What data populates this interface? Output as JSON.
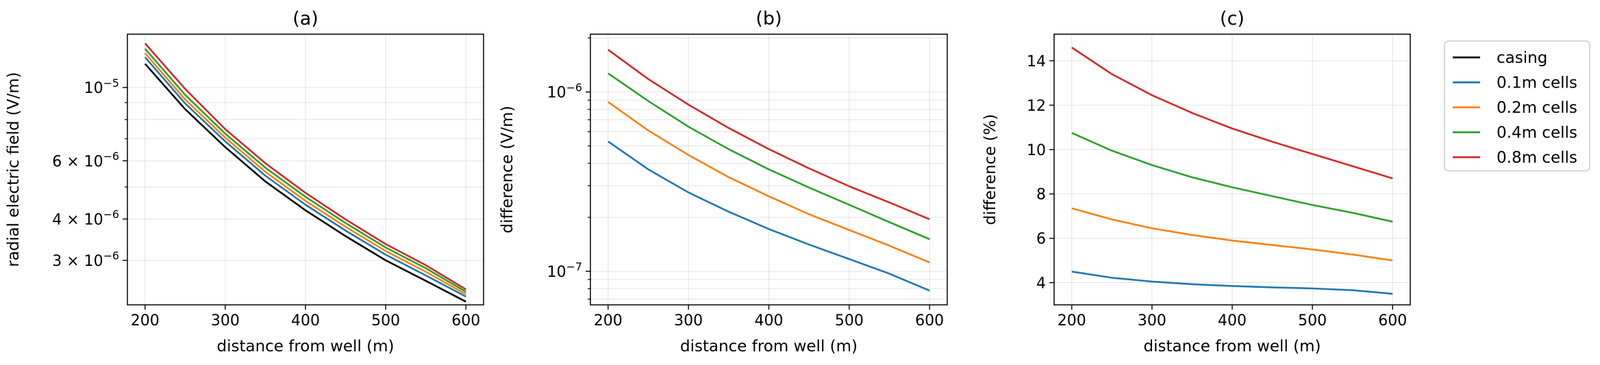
{
  "chart_data": [
    {
      "type": "line",
      "title": "(a)",
      "xlabel": "distance from well (m)",
      "ylabel": "radial electric field (V/m)",
      "xlim": [
        178,
        622
      ],
      "ylim": [
        2.2e-06,
        1.45e-05
      ],
      "yscale": "log",
      "grid": true,
      "x": [
        200,
        250,
        300,
        350,
        400,
        450,
        500,
        550,
        600
      ],
      "xticks": [
        200,
        300,
        400,
        500,
        600
      ],
      "xticklabels": [
        "200",
        "300",
        "400",
        "500",
        "600"
      ],
      "yticks": [
        1e-05,
        6e-06,
        4e-06,
        3e-06
      ],
      "yticklabels": [
        {
          "base": "10",
          "exp": "−5"
        },
        {
          "base": "6 × 10",
          "exp": "−6"
        },
        {
          "base": "4 × 10",
          "exp": "−6"
        },
        {
          "base": "3 × 10",
          "exp": "−6"
        }
      ],
      "series": [
        {
          "name": "casing",
          "color": "#000000",
          "values": [
            1.18e-05,
            8.6e-06,
            6.6e-06,
            5.2e-06,
            4.25e-06,
            3.55e-06,
            3e-06,
            2.6e-06,
            2.25e-06
          ]
        },
        {
          "name": "0.1m cells",
          "color": "#1f77b4",
          "values": [
            1.235e-05,
            8.95e-06,
            6.87e-06,
            5.41e-06,
            4.42e-06,
            3.69e-06,
            3.12e-06,
            2.7e-06,
            2.33e-06
          ]
        },
        {
          "name": "0.2m cells",
          "color": "#ff7f0e",
          "values": [
            1.27e-05,
            9.2e-06,
            7.05e-06,
            5.56e-06,
            4.54e-06,
            3.79e-06,
            3.2e-06,
            2.77e-06,
            2.37e-06
          ]
        },
        {
          "name": "0.4m cells",
          "color": "#2ca02c",
          "values": [
            1.31e-05,
            9.5e-06,
            7.25e-06,
            5.72e-06,
            4.67e-06,
            3.89e-06,
            3.28e-06,
            2.84e-06,
            2.41e-06
          ]
        },
        {
          "name": "0.8m cells",
          "color": "#d62728",
          "values": [
            1.36e-05,
            9.9e-06,
            7.48e-06,
            5.9e-06,
            4.8e-06,
            3.99e-06,
            3.36e-06,
            2.9e-06,
            2.45e-06
          ]
        }
      ]
    },
    {
      "type": "line",
      "title": "(b)",
      "xlabel": "distance from well (m)",
      "ylabel": "difference (V/m)",
      "xlim": [
        178,
        622
      ],
      "ylim": [
        6.5e-08,
        2.1e-06
      ],
      "yscale": "log",
      "grid": true,
      "x": [
        200,
        250,
        300,
        350,
        400,
        450,
        500,
        550,
        600
      ],
      "xticks": [
        200,
        300,
        400,
        500,
        600
      ],
      "xticklabels": [
        "200",
        "300",
        "400",
        "500",
        "600"
      ],
      "yticks": [
        1e-06,
        1e-07
      ],
      "yticklabels": [
        {
          "base": "10",
          "exp": "−6"
        },
        {
          "base": "10",
          "exp": "−7"
        }
      ],
      "series": [
        {
          "name": "0.1m cells",
          "color": "#1f77b4",
          "values": [
            5.3e-07,
            3.7e-07,
            2.75e-07,
            2.15e-07,
            1.72e-07,
            1.41e-07,
            1.17e-07,
            9.7e-08,
            7.8e-08
          ]
        },
        {
          "name": "0.2m cells",
          "color": "#ff7f0e",
          "values": [
            8.8e-07,
            6.1e-07,
            4.45e-07,
            3.35e-07,
            2.62e-07,
            2.08e-07,
            1.7e-07,
            1.39e-07,
            1.12e-07
          ]
        },
        {
          "name": "0.4m cells",
          "color": "#2ca02c",
          "values": [
            1.27e-06,
            8.9e-07,
            6.4e-07,
            4.8e-07,
            3.7e-07,
            2.93e-07,
            2.35e-07,
            1.88e-07,
            1.51e-07
          ]
        },
        {
          "name": "0.8m cells",
          "color": "#d62728",
          "values": [
            1.72e-06,
            1.18e-06,
            8.5e-07,
            6.3e-07,
            4.8e-07,
            3.75e-07,
            2.98e-07,
            2.42e-07,
            1.95e-07
          ]
        }
      ]
    },
    {
      "type": "line",
      "title": "(c)",
      "xlabel": "distance from well (m)",
      "ylabel": "difference (%)",
      "xlim": [
        178,
        622
      ],
      "ylim": [
        3.0,
        15.2
      ],
      "yscale": "linear",
      "grid": true,
      "x": [
        200,
        250,
        300,
        350,
        400,
        450,
        500,
        550,
        600
      ],
      "xticks": [
        200,
        300,
        400,
        500,
        600
      ],
      "xticklabels": [
        "200",
        "300",
        "400",
        "500",
        "600"
      ],
      "yticks": [
        4,
        6,
        8,
        10,
        12,
        14
      ],
      "yticklabels": [
        "4",
        "6",
        "8",
        "10",
        "12",
        "14"
      ],
      "legend": "outside-right",
      "series": [
        {
          "name": "0.1m cells",
          "color": "#1f77b4",
          "values": [
            4.5,
            4.22,
            4.05,
            3.93,
            3.85,
            3.79,
            3.74,
            3.66,
            3.5
          ]
        },
        {
          "name": "0.2m cells",
          "color": "#ff7f0e",
          "values": [
            7.35,
            6.85,
            6.45,
            6.15,
            5.9,
            5.7,
            5.5,
            5.27,
            5.0
          ]
        },
        {
          "name": "0.4m cells",
          "color": "#2ca02c",
          "values": [
            10.75,
            9.95,
            9.3,
            8.75,
            8.3,
            7.9,
            7.5,
            7.15,
            6.75
          ]
        },
        {
          "name": "0.8m cells",
          "color": "#d62728",
          "values": [
            14.6,
            13.4,
            12.45,
            11.65,
            10.95,
            10.35,
            9.8,
            9.25,
            8.7
          ]
        }
      ]
    }
  ],
  "legend": {
    "entries": [
      {
        "label": "casing",
        "color": "#000000"
      },
      {
        "label": "0.1m cells",
        "color": "#1f77b4"
      },
      {
        "label": "0.2m cells",
        "color": "#ff7f0e"
      },
      {
        "label": "0.4m cells",
        "color": "#2ca02c"
      },
      {
        "label": "0.8m cells",
        "color": "#d62728"
      }
    ]
  }
}
